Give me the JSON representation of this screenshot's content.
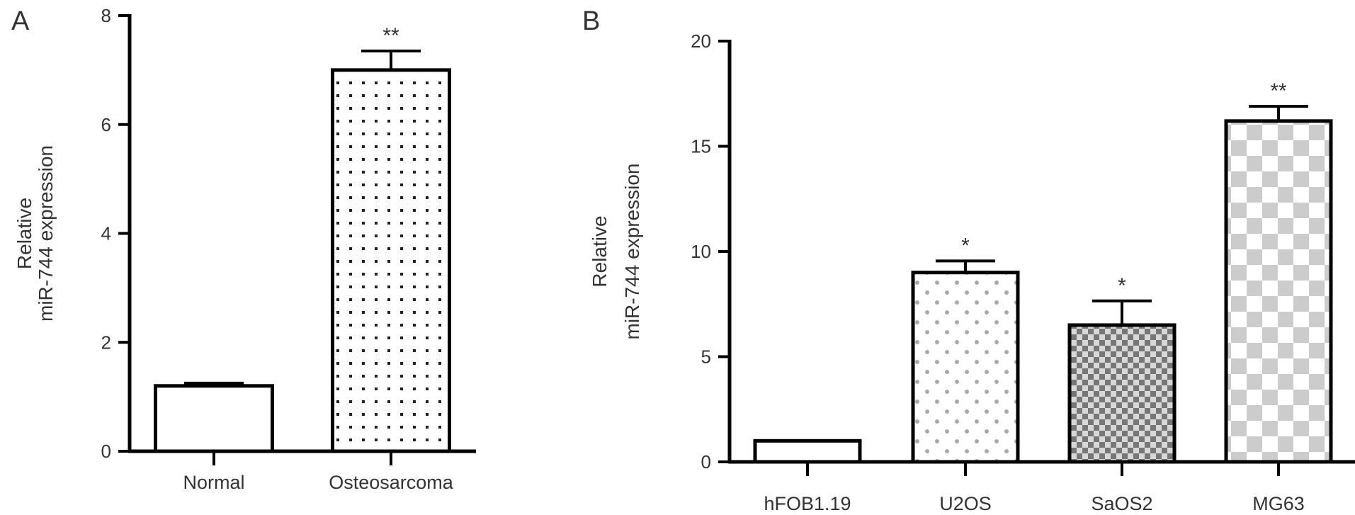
{
  "chart_data": [
    {
      "panel": "A",
      "type": "bar",
      "categories": [
        "Normal",
        "Osteosarcoma"
      ],
      "values": [
        1.2,
        7.0
      ],
      "errors": [
        0.05,
        0.35
      ],
      "significance": [
        "",
        "**"
      ],
      "patterns": [
        "none",
        "dots"
      ],
      "ylabel_line1": "Relative",
      "ylabel_line2": "miR-744 expression",
      "xlabel": "",
      "ylim": [
        0,
        8
      ],
      "yticks": [
        "0",
        "2",
        "4",
        "6",
        "8"
      ],
      "grid": false
    },
    {
      "panel": "B",
      "type": "bar",
      "categories": [
        "hFOB1.19",
        "U2OS",
        "SaOS2",
        "MG63"
      ],
      "values": [
        1.0,
        9.0,
        6.5,
        16.2
      ],
      "errors": [
        0.0,
        0.55,
        1.15,
        0.7
      ],
      "significance": [
        "",
        "*",
        "*",
        "**"
      ],
      "patterns": [
        "none",
        "light-dots",
        "dark-checker",
        "light-checker"
      ],
      "ylabel_line1": "Relative",
      "ylabel_line2": "miR-744 expression",
      "xlabel": "",
      "ylim": [
        0,
        20
      ],
      "yticks": [
        "0",
        "5",
        "10",
        "15",
        "20"
      ],
      "grid": false
    }
  ],
  "colors": {
    "axis": "#000000",
    "bar_edge": "#000000",
    "bar_fill": "#ffffff",
    "dots": "#222222",
    "light_dots": "#aaaaaa",
    "dark_checker": "#777777",
    "light_checker": "#cccccc",
    "text": "#333333"
  }
}
